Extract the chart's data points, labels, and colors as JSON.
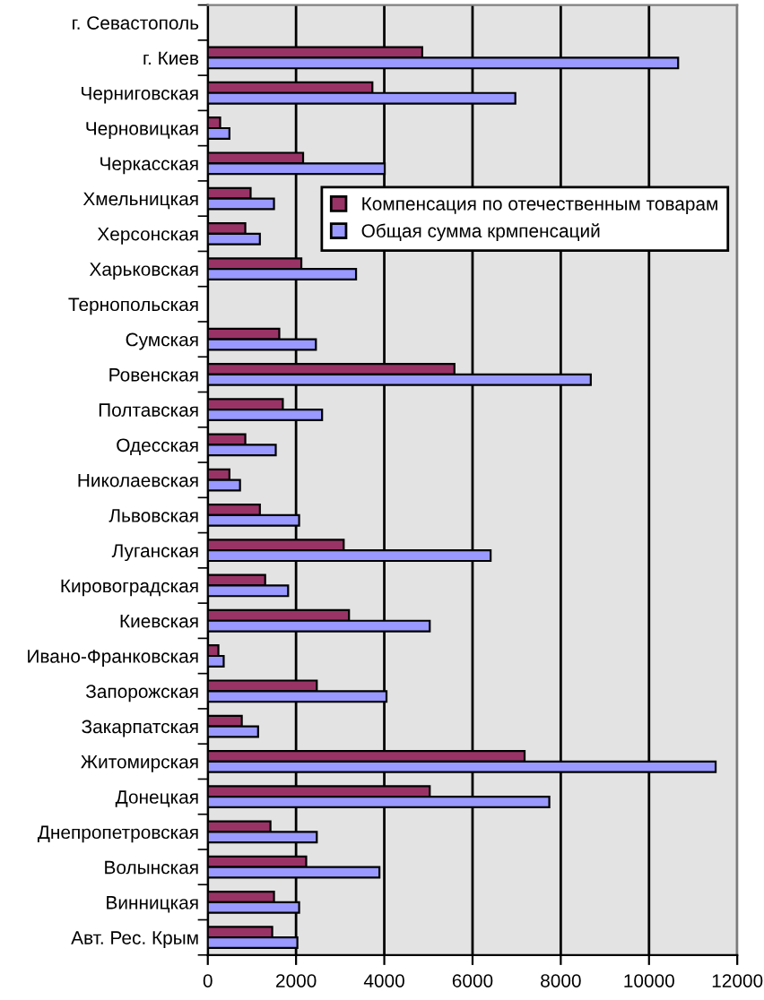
{
  "chart_data": {
    "type": "bar",
    "orientation": "horizontal",
    "categories": [
      "г. Севастополь",
      "г. Киев",
      "Черниговская",
      "Черновицкая",
      "Черкасская",
      "Хмельницкая",
      "Херсонская",
      "Харьковская",
      "Тернопольская",
      "Сумская",
      "Ровенская",
      "Полтавская",
      "Одесская",
      "Николаевская",
      "Львовская",
      "Луганская",
      "Кировоградская",
      "Киевская",
      "Ивано-Франковская",
      "Запорожская",
      "Закарпатская",
      "Житомирская",
      "Донецкая",
      "Днепропетровская",
      "Волынская",
      "Винницкая",
      "Авт. Рес. Крым"
    ],
    "series": [
      {
        "name": "Компенсация по отечественным товарам",
        "color": "#993366",
        "values": [
          null,
          4860,
          3730,
          280,
          2160,
          970,
          850,
          2120,
          null,
          1620,
          5590,
          1700,
          850,
          490,
          1180,
          3080,
          1300,
          3200,
          240,
          2470,
          770,
          7180,
          5030,
          1420,
          2230,
          1500,
          1460
        ]
      },
      {
        "name": "Общая сумма крмпенсаций",
        "color": "#9999ff",
        "values": [
          null,
          10660,
          6970,
          490,
          4010,
          1500,
          1180,
          3360,
          null,
          2450,
          8680,
          2590,
          1540,
          730,
          2070,
          6410,
          1820,
          5030,
          360,
          4050,
          1140,
          11510,
          7740,
          2470,
          3890,
          2070,
          2030
        ]
      }
    ],
    "xlim": [
      0,
      12000
    ],
    "xticks": [
      0,
      2000,
      4000,
      6000,
      8000,
      10000,
      12000
    ],
    "grid": "x",
    "legend": "top right"
  }
}
